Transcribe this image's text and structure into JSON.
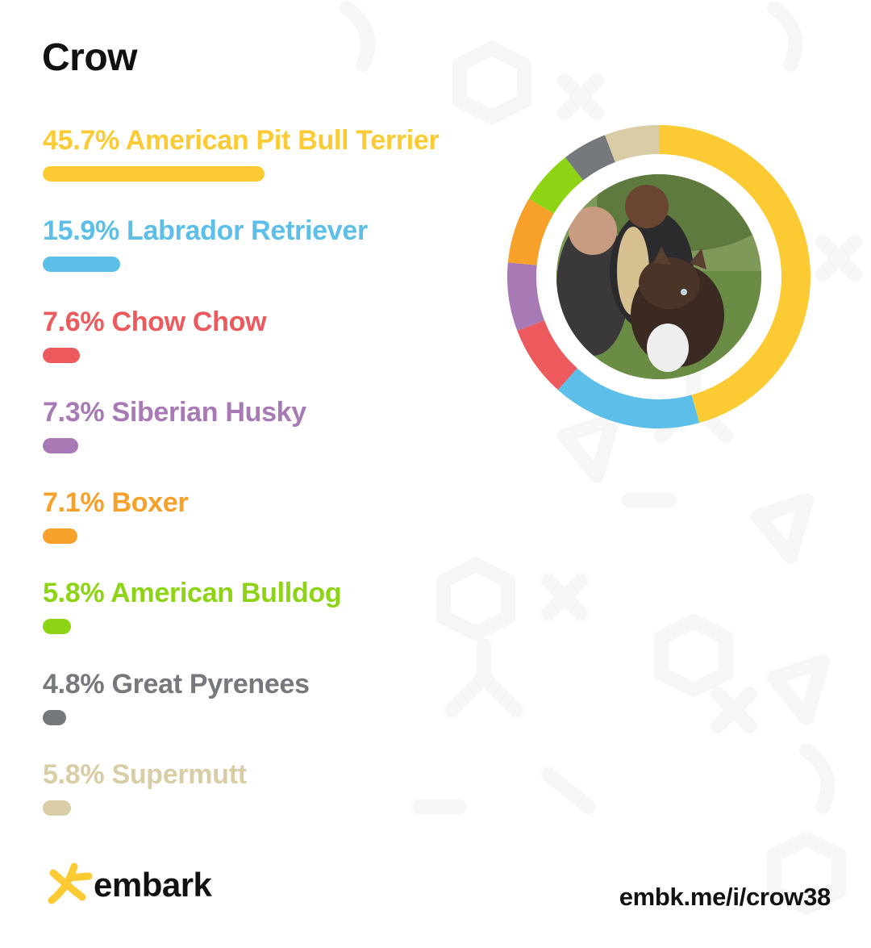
{
  "dog_name": "Crow",
  "chart_data": {
    "type": "pie",
    "style": "donut",
    "title": "Crow",
    "categories": [
      "American Pit Bull Terrier",
      "Labrador Retriever",
      "Chow Chow",
      "Siberian Husky",
      "Boxer",
      "American Bulldog",
      "Great Pyrenees",
      "Supermutt"
    ],
    "values": [
      45.7,
      15.9,
      7.6,
      7.3,
      7.1,
      5.8,
      4.8,
      5.8
    ],
    "unit": "%",
    "legend": "left",
    "colors": [
      "#FCCB33",
      "#5BBFE9",
      "#EC5A5E",
      "#A77AB5",
      "#F7A12B",
      "#8CD414",
      "#75787D",
      "#D9CDA5"
    ]
  },
  "breeds": [
    {
      "label": "45.7% American Pit Bull Terrier",
      "color": "#FCCB33"
    },
    {
      "label": "15.9% Labrador Retriever",
      "color": "#5BBFE9"
    },
    {
      "label": "7.6% Chow Chow",
      "color": "#EC5A5E"
    },
    {
      "label": "7.3% Siberian Husky",
      "color": "#A77AB5"
    },
    {
      "label": "7.1% Boxer",
      "color": "#F7A12B"
    },
    {
      "label": "5.8% American Bulldog",
      "color": "#8CD414"
    },
    {
      "label": "4.8% Great Pyrenees",
      "color": "#75787D"
    },
    {
      "label": "5.8% Supermutt",
      "color": "#D9CDA5"
    }
  ],
  "photo_icon": "dog-photo-icon",
  "brand": {
    "name": "embark",
    "accent": "#FCCB33",
    "icon": "embark-logo-icon"
  },
  "share_link": "embk.me/i/crow38"
}
